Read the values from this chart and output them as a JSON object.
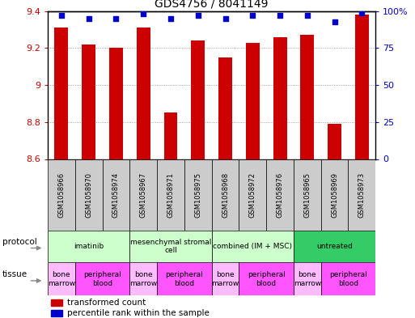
{
  "title": "GDS4756 / 8041149",
  "samples": [
    "GSM1058966",
    "GSM1058970",
    "GSM1058974",
    "GSM1058967",
    "GSM1058971",
    "GSM1058975",
    "GSM1058968",
    "GSM1058972",
    "GSM1058976",
    "GSM1058965",
    "GSM1058969",
    "GSM1058973"
  ],
  "bar_values": [
    9.31,
    9.22,
    9.2,
    9.31,
    8.85,
    9.24,
    9.15,
    9.23,
    9.26,
    9.27,
    8.79,
    9.38
  ],
  "dot_values": [
    97,
    95,
    95,
    98,
    95,
    97,
    95,
    97,
    97,
    97,
    93,
    99
  ],
  "ylim_left": [
    8.6,
    9.4
  ],
  "ylim_right": [
    0,
    100
  ],
  "yticks_left": [
    8.6,
    8.8,
    9.0,
    9.2,
    9.4
  ],
  "ytick_labels_left": [
    "8.6",
    "8.8",
    "9",
    "9.2",
    "9.4"
  ],
  "yticks_right": [
    0,
    25,
    50,
    75,
    100
  ],
  "ytick_labels_right": [
    "0",
    "25",
    "50",
    "75",
    "100%"
  ],
  "bar_color": "#cc0000",
  "dot_color": "#0000cc",
  "grid_color": "#888888",
  "bg_plot": "#ffffff",
  "bg_fig": "#ffffff",
  "protocols": [
    {
      "label": "imatinib",
      "start": 0,
      "end": 3,
      "color": "#ccffcc"
    },
    {
      "label": "mesenchymal stromal\ncell",
      "start": 3,
      "end": 6,
      "color": "#ccffcc"
    },
    {
      "label": "combined (IM + MSC)",
      "start": 6,
      "end": 9,
      "color": "#ccffcc"
    },
    {
      "label": "untreated",
      "start": 9,
      "end": 12,
      "color": "#33cc66"
    }
  ],
  "tissues": [
    {
      "label": "bone\nmarrow",
      "start": 0,
      "end": 1,
      "color": "#ffbbff"
    },
    {
      "label": "peripheral\nblood",
      "start": 1,
      "end": 3,
      "color": "#ff55ff"
    },
    {
      "label": "bone\nmarrow",
      "start": 3,
      "end": 4,
      "color": "#ffbbff"
    },
    {
      "label": "peripheral\nblood",
      "start": 4,
      "end": 6,
      "color": "#ff55ff"
    },
    {
      "label": "bone\nmarrow",
      "start": 6,
      "end": 7,
      "color": "#ffbbff"
    },
    {
      "label": "peripheral\nblood",
      "start": 7,
      "end": 9,
      "color": "#ff55ff"
    },
    {
      "label": "bone\nmarrow",
      "start": 9,
      "end": 10,
      "color": "#ffbbff"
    },
    {
      "label": "peripheral\nblood",
      "start": 10,
      "end": 12,
      "color": "#ff55ff"
    }
  ],
  "sample_bg_color": "#cccccc",
  "protocol_row_label": "protocol",
  "tissue_row_label": "tissue",
  "legend_bar_label": "transformed count",
  "legend_dot_label": "percentile rank within the sample"
}
